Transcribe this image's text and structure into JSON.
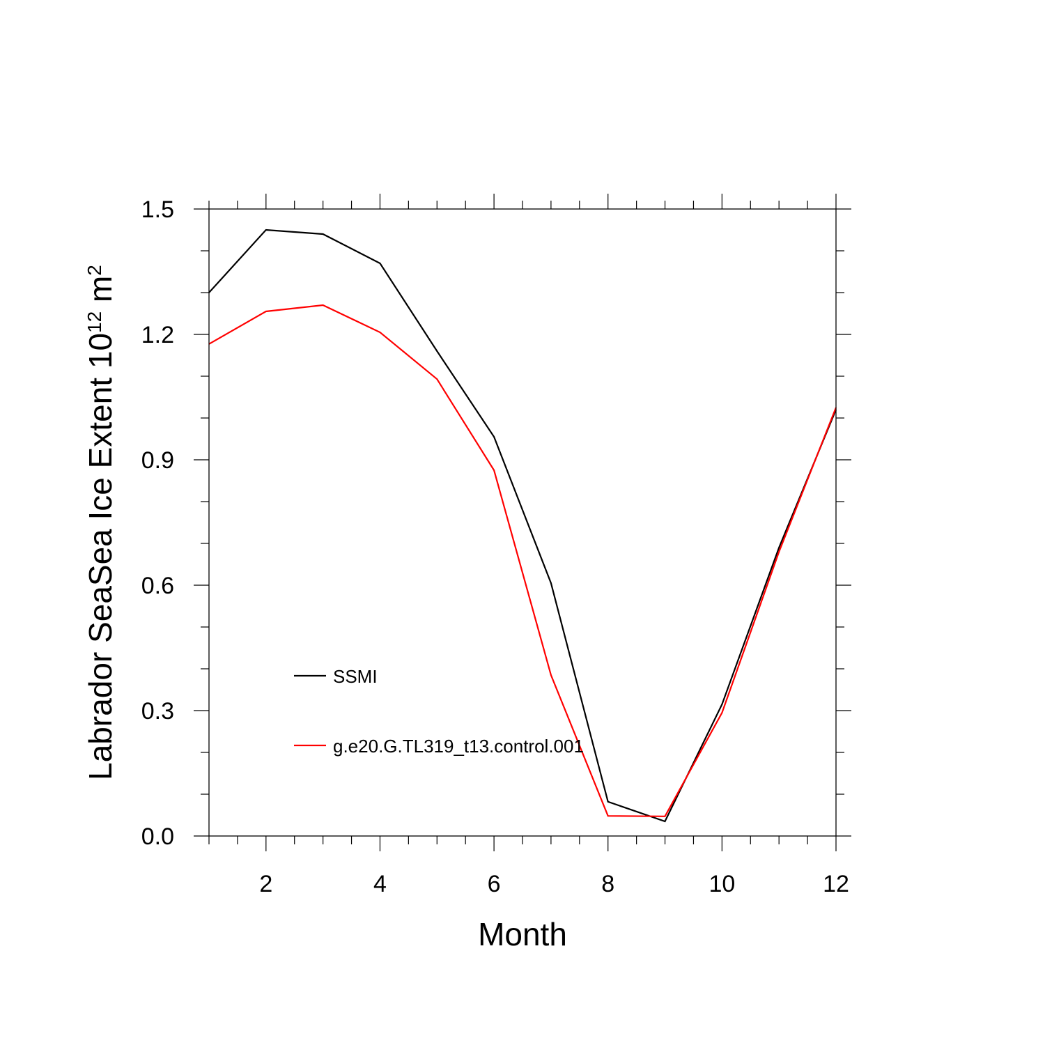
{
  "chart_data": {
    "type": "line",
    "xlabel": "Month",
    "ylabel": {
      "main": "Labrador SeaSea Ice Extent 10",
      "superscript": "12",
      "unit": " m",
      "unit_superscript": "2"
    },
    "xlim": [
      1,
      12
    ],
    "ylim": [
      0,
      1.5
    ],
    "xticks": [
      2,
      4,
      6,
      8,
      10,
      12
    ],
    "xtick_labels": [
      "2",
      "4",
      "6",
      "8",
      "10",
      "12"
    ],
    "yticks": [
      0,
      0.3,
      0.6,
      0.9,
      1.2,
      1.5
    ],
    "ytick_labels": [
      "0.0",
      "0.3",
      "0.6",
      "0.9",
      "1.2",
      "1.5"
    ],
    "x_minor_step": 0.5,
    "y_minor_step": 0.1,
    "grid": false,
    "legend_position": "lower-left",
    "x": [
      1,
      2,
      3,
      4,
      5,
      6,
      7,
      8,
      9,
      10,
      11,
      12
    ],
    "series": [
      {
        "name": "SSMI",
        "color": "#000000",
        "values": [
          1.3,
          1.45,
          1.44,
          1.37,
          1.16,
          0.955,
          0.605,
          0.082,
          0.035,
          0.315,
          0.69,
          1.02
        ]
      },
      {
        "name": "g.e20.G.TL319_t13.control.001",
        "color": "#ff0000",
        "values": [
          1.177,
          1.255,
          1.27,
          1.205,
          1.093,
          0.875,
          0.385,
          0.048,
          0.047,
          0.295,
          0.68,
          1.025
        ]
      }
    ]
  }
}
